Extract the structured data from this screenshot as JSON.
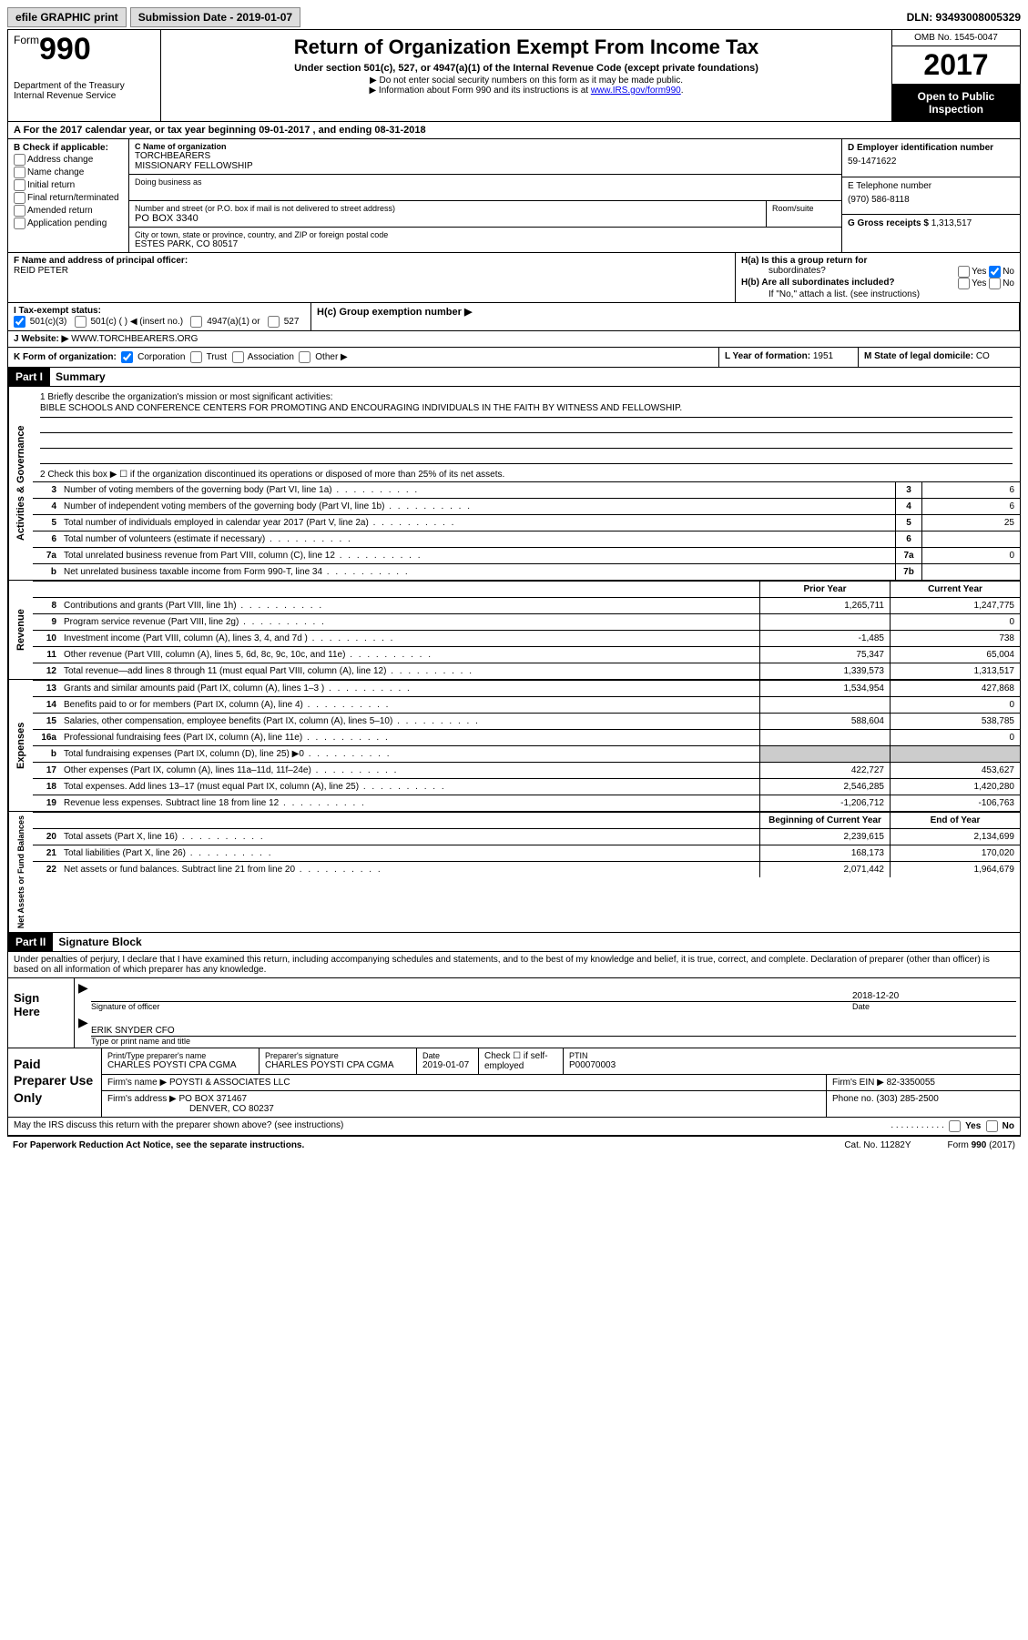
{
  "topbar": {
    "efile": "efile GRAPHIC print",
    "submission": "Submission Date - 2019-01-07",
    "dln": "DLN: 93493008005329"
  },
  "header": {
    "form_word": "Form",
    "form_no": "990",
    "dept1": "Department of the Treasury",
    "dept2": "Internal Revenue Service",
    "title": "Return of Organization Exempt From Income Tax",
    "subtitle": "Under section 501(c), 527, or 4947(a)(1) of the Internal Revenue Code (except private foundations)",
    "bullet1": "▶ Do not enter social security numbers on this form as it may be made public.",
    "bullet2_pre": "▶ Information about Form 990 and its instructions is at ",
    "bullet2_link": "www.IRS.gov/form990",
    "omb": "OMB No. 1545-0047",
    "year": "2017",
    "inspect1": "Open to Public",
    "inspect2": "Inspection"
  },
  "rowA": "A   For the 2017 calendar year, or tax year beginning 09-01-2017   , and ending 08-31-2018",
  "colB": {
    "label": "B Check if applicable:",
    "items": [
      "Address change",
      "Name change",
      "Initial return",
      "Final return/terminated",
      "Amended return",
      "Application pending"
    ]
  },
  "colC": {
    "name_label": "C Name of organization",
    "name1": "TORCHBEARERS",
    "name2": "MISSIONARY FELLOWSHIP",
    "dba": "Doing business as",
    "street_label": "Number and street (or P.O. box if mail is not delivered to street address)",
    "room_label": "Room/suite",
    "street": "PO BOX 3340",
    "city_label": "City or town, state or province, country, and ZIP or foreign postal code",
    "city": "ESTES PARK, CO  80517"
  },
  "colD": {
    "ein_label": "D Employer identification number",
    "ein": "59-1471622",
    "phone_label": "E Telephone number",
    "phone": "(970) 586-8118",
    "gross_label": "G Gross receipts $ ",
    "gross": "1,313,517"
  },
  "rowF": {
    "label": "F  Name and address of principal officer:",
    "name": "REID PETER"
  },
  "rowH": {
    "ha": "H(a)  Is this a group return for",
    "ha2": "subordinates?",
    "hb": "H(b)  Are all subordinates included?",
    "hb_note": "If \"No,\" attach a list. (see instructions)",
    "hc": "H(c)  Group exemption number ▶",
    "yes": "Yes",
    "no": "No"
  },
  "rowI": "I   Tax-exempt status:",
  "rowI_opts": {
    "a": "501(c)(3)",
    "b": "501(c) (   ) ◀ (insert no.)",
    "c": "4947(a)(1) or",
    "d": "527"
  },
  "rowJ_label": "J   Website: ▶ ",
  "rowJ_val": "WWW.TORCHBEARERS.ORG",
  "rowK": {
    "label": "K Form of organization:",
    "corp": "Corporation",
    "trust": "Trust",
    "assoc": "Association",
    "other": "Other ▶",
    "year_label": "L Year of formation: ",
    "year": "1951",
    "state_label": "M State of legal domicile: ",
    "state": "CO"
  },
  "part1": {
    "hdr": "Part I",
    "title": "Summary"
  },
  "mission": {
    "l1": "1   Briefly describe the organization's mission or most significant activities:",
    "text": "BIBLE SCHOOLS AND CONFERENCE CENTERS FOR PROMOTING AND ENCOURAGING INDIVIDUALS IN THE FAITH BY WITNESS AND FELLOWSHIP.",
    "l2": "2   Check this box ▶ ☐  if the organization discontinued its operations or disposed of more than 25% of its net assets."
  },
  "gov_rows": [
    {
      "n": "3",
      "t": "Number of voting members of the governing body (Part VI, line 1a)",
      "k": "3",
      "v": "6"
    },
    {
      "n": "4",
      "t": "Number of independent voting members of the governing body (Part VI, line 1b)",
      "k": "4",
      "v": "6"
    },
    {
      "n": "5",
      "t": "Total number of individuals employed in calendar year 2017 (Part V, line 2a)",
      "k": "5",
      "v": "25"
    },
    {
      "n": "6",
      "t": "Total number of volunteers (estimate if necessary)",
      "k": "6",
      "v": ""
    },
    {
      "n": "7a",
      "t": "Total unrelated business revenue from Part VIII, column (C), line 12",
      "k": "7a",
      "v": "0"
    },
    {
      "n": "b",
      "t": "Net unrelated business taxable income from Form 990-T, line 34",
      "k": "7b",
      "v": ""
    }
  ],
  "fin_hdr": {
    "py": "Prior Year",
    "cy": "Current Year"
  },
  "revenue_rows": [
    {
      "n": "8",
      "t": "Contributions and grants (Part VIII, line 1h)",
      "py": "1,265,711",
      "cy": "1,247,775"
    },
    {
      "n": "9",
      "t": "Program service revenue (Part VIII, line 2g)",
      "py": "",
      "cy": "0"
    },
    {
      "n": "10",
      "t": "Investment income (Part VIII, column (A), lines 3, 4, and 7d )",
      "py": "-1,485",
      "cy": "738"
    },
    {
      "n": "11",
      "t": "Other revenue (Part VIII, column (A), lines 5, 6d, 8c, 9c, 10c, and 11e)",
      "py": "75,347",
      "cy": "65,004"
    },
    {
      "n": "12",
      "t": "Total revenue—add lines 8 through 11 (must equal Part VIII, column (A), line 12)",
      "py": "1,339,573",
      "cy": "1,313,517"
    }
  ],
  "expense_rows": [
    {
      "n": "13",
      "t": "Grants and similar amounts paid (Part IX, column (A), lines 1–3 )",
      "py": "1,534,954",
      "cy": "427,868"
    },
    {
      "n": "14",
      "t": "Benefits paid to or for members (Part IX, column (A), line 4)",
      "py": "",
      "cy": "0"
    },
    {
      "n": "15",
      "t": "Salaries, other compensation, employee benefits (Part IX, column (A), lines 5–10)",
      "py": "588,604",
      "cy": "538,785"
    },
    {
      "n": "16a",
      "t": "Professional fundraising fees (Part IX, column (A), line 11e)",
      "py": "",
      "cy": "0"
    },
    {
      "n": "b",
      "t": "Total fundraising expenses (Part IX, column (D), line 25) ▶0",
      "py": "SHADE",
      "cy": "SHADE"
    },
    {
      "n": "17",
      "t": "Other expenses (Part IX, column (A), lines 11a–11d, 11f–24e)",
      "py": "422,727",
      "cy": "453,627"
    },
    {
      "n": "18",
      "t": "Total expenses. Add lines 13–17 (must equal Part IX, column (A), line 25)",
      "py": "2,546,285",
      "cy": "1,420,280"
    },
    {
      "n": "19",
      "t": "Revenue less expenses. Subtract line 18 from line 12",
      "py": "-1,206,712",
      "cy": "-106,763"
    }
  ],
  "net_hdr": {
    "py": "Beginning of Current Year",
    "cy": "End of Year"
  },
  "net_rows": [
    {
      "n": "20",
      "t": "Total assets (Part X, line 16)",
      "py": "2,239,615",
      "cy": "2,134,699"
    },
    {
      "n": "21",
      "t": "Total liabilities (Part X, line 26)",
      "py": "168,173",
      "cy": "170,020"
    },
    {
      "n": "22",
      "t": "Net assets or fund balances. Subtract line 21 from line 20",
      "py": "2,071,442",
      "cy": "1,964,679"
    }
  ],
  "sides": {
    "gov": "Activities & Governance",
    "rev": "Revenue",
    "exp": "Expenses",
    "net": "Net Assets or Fund Balances"
  },
  "part2": {
    "hdr": "Part II",
    "title": "Signature Block"
  },
  "sig_decl": "Under penalties of perjury, I declare that I have examined this return, including accompanying schedules and statements, and to the best of my knowledge and belief, it is true, correct, and complete. Declaration of preparer (other than officer) is based on all information of which preparer has any knowledge.",
  "sig": {
    "here": "Sign Here",
    "officer_line": "Signature of officer",
    "date_label": "Date",
    "date": "2018-12-20",
    "name": "ERIK SNYDER CFO",
    "name_label": "Type or print name and title"
  },
  "prep": {
    "left": "Paid Preparer Use Only",
    "name_label": "Print/Type preparer's name",
    "name": "CHARLES POYSTI CPA CGMA",
    "sig_label": "Preparer's signature",
    "sig": "CHARLES POYSTI CPA CGMA",
    "date_label": "Date",
    "date": "2019-01-07",
    "check_label": "Check ☐ if self-employed",
    "ptin_label": "PTIN",
    "ptin": "P00070003",
    "firm_label": "Firm's name    ▶ ",
    "firm": "POYSTI & ASSOCIATES LLC",
    "ein_label": "Firm's EIN ▶ ",
    "ein": "82-3350055",
    "addr_label": "Firm's address ▶ ",
    "addr1": "PO BOX 371467",
    "addr2": "DENVER, CO  80237",
    "phone_label": "Phone no. ",
    "phone": "(303) 285-2500"
  },
  "discuss": "May the IRS discuss this return with the preparer shown above? (see instructions)",
  "footer": {
    "left": "For Paperwork Reduction Act Notice, see the separate instructions.",
    "mid": "Cat. No. 11282Y",
    "right": "Form 990 (2017)"
  }
}
